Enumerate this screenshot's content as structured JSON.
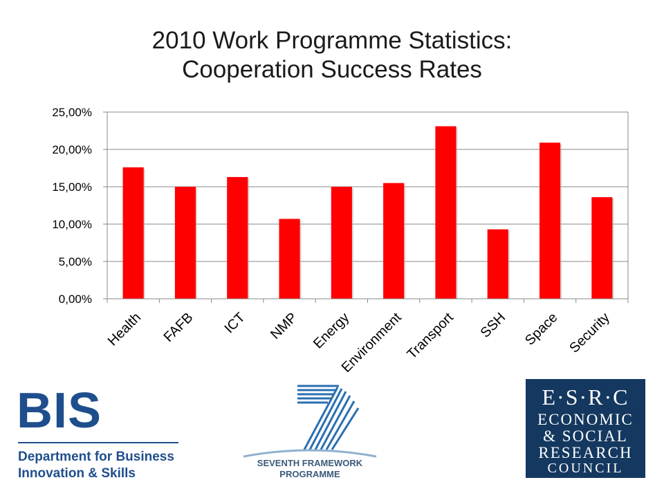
{
  "title_lines": [
    "2010 Work Programme Statistics:",
    "Cooperation Success Rates"
  ],
  "chart_data": {
    "type": "bar",
    "categories": [
      "Health",
      "FAFB",
      "ICT",
      "NMP",
      "Energy",
      "Environment",
      "Transport",
      "SSH",
      "Space",
      "Security"
    ],
    "values": [
      17.6,
      15.0,
      16.3,
      10.7,
      15.0,
      15.5,
      23.1,
      9.3,
      20.9,
      13.6
    ],
    "y_ticks": [
      "0,00%",
      "5,00%",
      "10,00%",
      "15,00%",
      "20,00%",
      "25,00%"
    ],
    "ylim": [
      0,
      25
    ],
    "y_unit": "percent",
    "bar_color": "#ff0000",
    "grid": true,
    "legend": false
  },
  "logos": {
    "bis": {
      "letters": "BIS",
      "line1": "Department for Business",
      "line2": "Innovation & Skills",
      "color": "#1f4e8c"
    },
    "fp7": {
      "line1": "SEVENTH FRAMEWORK",
      "line2": "PROGRAMME",
      "color": "#3a5a7a"
    },
    "esrc": {
      "line1": "E·S·R·C",
      "line2": "ECONOMIC",
      "line3": "& SOCIAL",
      "line4": "RESEARCH",
      "line5": "COUNCIL",
      "background": "#14385f"
    }
  }
}
